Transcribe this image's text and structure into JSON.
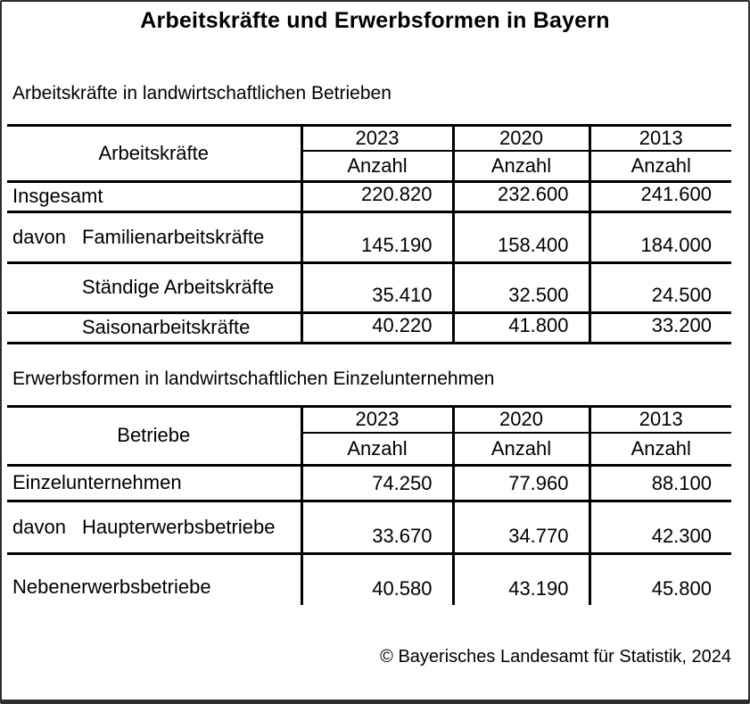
{
  "page": {
    "title": "Arbeitskräfte und Erwerbsformen in Bayern",
    "footer": "© Bayerisches Landesamt für Statistik, 2024"
  },
  "colors": {
    "text": "#000000",
    "table_rules": "#000000",
    "background": "#ffffff",
    "frame": "#2e2e2e"
  },
  "tables": [
    {
      "section_title": "Arbeitskräfte in landwirtschaftlichen Betrieben",
      "header": {
        "label": "Arbeitskräfte",
        "years": [
          "2023",
          "2020",
          "2013"
        ],
        "unit": "Anzahl"
      },
      "rows": [
        {
          "prefix": "",
          "label": "Insgesamt",
          "values": [
            "220.820",
            "232.600",
            "241.600"
          ]
        },
        {
          "prefix": "davon",
          "label": "Familienarbeitskräfte",
          "values": [
            "145.190",
            "158.400",
            "184.000"
          ]
        },
        {
          "prefix": "",
          "label": "Ständige Arbeitskräfte",
          "values": [
            "35.410",
            "32.500",
            "24.500"
          ]
        },
        {
          "prefix": "",
          "label": "Saisonarbeitskräfte",
          "values": [
            "40.220",
            "41.800",
            "33.200"
          ]
        }
      ]
    },
    {
      "section_title": "Erwerbsformen in landwirtschaftlichen Einzelunternehmen",
      "header": {
        "label": "Betriebe",
        "years": [
          "2023",
          "2020",
          "2013"
        ],
        "unit": "Anzahl"
      },
      "rows": [
        {
          "prefix": "",
          "label": "Einzelunternehmen",
          "values": [
            "74.250",
            "77.960",
            "88.100"
          ]
        },
        {
          "prefix": "davon",
          "label": "Haupterwerbsbetriebe",
          "values": [
            "33.670",
            "34.770",
            "42.300"
          ]
        },
        {
          "prefix": "",
          "label": "Nebenerwerbsbetriebe",
          "values": [
            "40.580",
            "43.190",
            "45.800"
          ]
        }
      ]
    }
  ],
  "chart_data": {
    "type": "table",
    "title": "Arbeitskräfte und Erwerbsformen in Bayern",
    "tables": [
      {
        "caption": "Arbeitskräfte in landwirtschaftlichen Betrieben",
        "columns": [
          "Arbeitskräfte",
          "2023 Anzahl",
          "2020 Anzahl",
          "2013 Anzahl"
        ],
        "rows": [
          [
            "Insgesamt",
            220820,
            232600,
            241600
          ],
          [
            "davon Familienarbeitskräfte",
            145190,
            158400,
            184000
          ],
          [
            "Ständige Arbeitskräfte",
            35410,
            32500,
            24500
          ],
          [
            "Saisonarbeitskräfte",
            40220,
            41800,
            33200
          ]
        ]
      },
      {
        "caption": "Erwerbsformen in landwirtschaftlichen Einzelunternehmen",
        "columns": [
          "Betriebe",
          "2023 Anzahl",
          "2020 Anzahl",
          "2013 Anzahl"
        ],
        "rows": [
          [
            "Einzelunternehmen",
            74250,
            77960,
            88100
          ],
          [
            "davon Haupterwerbsbetriebe",
            33670,
            34770,
            42300
          ],
          [
            "Nebenerwerbsbetriebe",
            40580,
            43190,
            45800
          ]
        ]
      }
    ]
  }
}
